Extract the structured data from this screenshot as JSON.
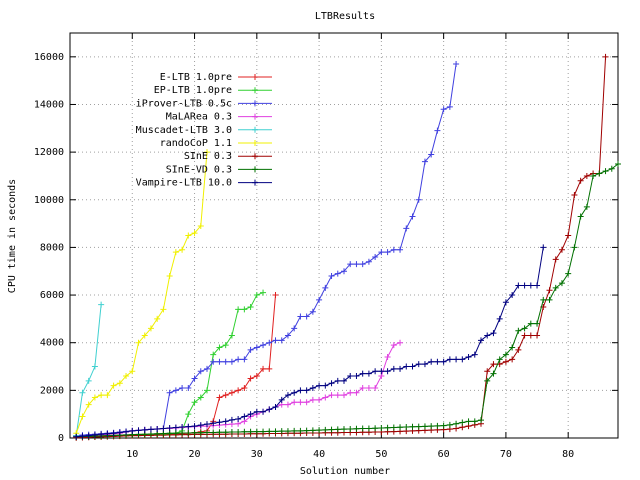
{
  "chart_data": {
    "type": "line",
    "title": "LTBResults",
    "x_label": "Solution number",
    "y_label": "CPU time in seconds",
    "xlim": [
      0,
      88
    ],
    "ylim": [
      0,
      17000
    ],
    "xticks": [
      10,
      20,
      30,
      40,
      50,
      60,
      70,
      80
    ],
    "yticks": [
      0,
      2000,
      4000,
      6000,
      8000,
      10000,
      12000,
      14000,
      16000
    ],
    "grid": true,
    "legend": "top-left",
    "x": [
      1,
      2,
      3,
      4,
      5,
      6,
      7,
      8,
      9,
      10,
      11,
      12,
      13,
      14,
      15,
      16,
      17,
      18,
      19,
      20,
      21,
      22,
      23,
      24,
      25,
      26,
      27,
      28,
      29,
      30,
      31,
      32,
      33,
      34,
      35,
      36,
      37,
      38,
      39,
      40,
      41,
      42,
      43,
      44,
      45,
      46,
      47,
      48,
      49,
      50,
      51,
      52,
      53,
      54,
      55,
      56,
      57,
      58,
      59,
      60,
      61,
      62,
      63,
      64,
      65,
      66,
      67,
      68,
      69,
      70,
      71,
      72,
      73,
      74,
      75,
      76,
      77,
      78,
      79,
      80,
      81,
      82,
      83,
      84,
      85,
      86,
      87,
      88
    ],
    "series": [
      {
        "name": "E-LTB 1.0pre",
        "color": "#e02020",
        "values": [
          20,
          30,
          40,
          50,
          60,
          70,
          80,
          90,
          100,
          110,
          120,
          130,
          140,
          150,
          160,
          170,
          180,
          190,
          200,
          220,
          260,
          300,
          700,
          1700,
          1800,
          1900,
          2000,
          2100,
          2500,
          2600,
          2900,
          2900,
          6000,
          null,
          null,
          null,
          null,
          null,
          null,
          null,
          null,
          null,
          null,
          null,
          null,
          null,
          null,
          null,
          null,
          null,
          null,
          null,
          null,
          null,
          null,
          null,
          null,
          null,
          null,
          null,
          null,
          null,
          null,
          null,
          null,
          null,
          null,
          null,
          null,
          null,
          null,
          null,
          null,
          null,
          null,
          null,
          null,
          null,
          null,
          null,
          null,
          null,
          null,
          null,
          null,
          null,
          null,
          null
        ]
      },
      {
        "name": "EP-LTB 1.0pre",
        "color": "#30d030",
        "values": [
          20,
          30,
          40,
          50,
          60,
          70,
          80,
          90,
          100,
          110,
          120,
          130,
          140,
          150,
          160,
          180,
          200,
          300,
          1000,
          1500,
          1700,
          2000,
          3500,
          3800,
          3900,
          4300,
          5400,
          5400,
          5500,
          6000,
          6100,
          null,
          null,
          null,
          null,
          null,
          null,
          null,
          null,
          null,
          null,
          null,
          null,
          null,
          null,
          null,
          null,
          null,
          null,
          null,
          null,
          null,
          null,
          null,
          null,
          null,
          null,
          null,
          null,
          null,
          null,
          null,
          null,
          null,
          null,
          null,
          null,
          null,
          null,
          null,
          null,
          null,
          null,
          null,
          null,
          null,
          null,
          null,
          null,
          null,
          null,
          null,
          null,
          null,
          null,
          null,
          null,
          null
        ]
      },
      {
        "name": "iProver-LTB 0.5c",
        "color": "#4040e0",
        "values": [
          100,
          120,
          140,
          160,
          180,
          200,
          220,
          250,
          280,
          300,
          320,
          340,
          360,
          380,
          400,
          1900,
          2000,
          2100,
          2100,
          2500,
          2800,
          2900,
          3200,
          3200,
          3200,
          3200,
          3300,
          3300,
          3700,
          3800,
          3900,
          4000,
          4100,
          4100,
          4300,
          4600,
          5100,
          5100,
          5300,
          5800,
          6300,
          6800,
          6900,
          7000,
          7300,
          7300,
          7300,
          7400,
          7600,
          7800,
          7800,
          7900,
          7900,
          8800,
          9300,
          10000,
          11600,
          11900,
          12900,
          13800,
          13900,
          15700,
          null,
          null,
          null,
          null,
          null,
          null,
          null,
          null,
          null,
          null,
          null,
          null,
          null,
          null,
          null,
          null,
          null,
          null,
          null,
          null,
          null,
          null,
          null,
          null,
          null,
          null
        ]
      },
      {
        "name": "MaLARea 0.3",
        "color": "#e040e0",
        "values": [
          50,
          60,
          80,
          100,
          120,
          150,
          180,
          200,
          250,
          300,
          320,
          340,
          360,
          380,
          400,
          400,
          420,
          440,
          460,
          480,
          500,
          500,
          520,
          540,
          560,
          580,
          600,
          700,
          900,
          1000,
          1100,
          1200,
          1300,
          1400,
          1400,
          1500,
          1500,
          1500,
          1600,
          1600,
          1700,
          1800,
          1800,
          1800,
          1900,
          1900,
          2100,
          2100,
          2100,
          2600,
          3400,
          3900,
          4000,
          null,
          null,
          null,
          null,
          null,
          null,
          null,
          null,
          null,
          null,
          null,
          null,
          null,
          null,
          null,
          null,
          null,
          null,
          null,
          null,
          null,
          null,
          null,
          null,
          null,
          null,
          null,
          null,
          null,
          null,
          null,
          null,
          null,
          null,
          null
        ]
      },
      {
        "name": "Muscadet-LTB 3.0",
        "color": "#40d0d0",
        "values": [
          100,
          1900,
          2400,
          3000,
          5600,
          null,
          null,
          null,
          null,
          null,
          null,
          null,
          null,
          null,
          null,
          null,
          null,
          null,
          null,
          null,
          null,
          null,
          null,
          null,
          null,
          null,
          null,
          null,
          null,
          null,
          null,
          null,
          null,
          null,
          null,
          null,
          null,
          null,
          null,
          null,
          null,
          null,
          null,
          null,
          null,
          null,
          null,
          null,
          null,
          null,
          null,
          null,
          null,
          null,
          null,
          null,
          null,
          null,
          null,
          null,
          null,
          null,
          null,
          null,
          null,
          null,
          null,
          null,
          null,
          null,
          null,
          null,
          null,
          null,
          null,
          null,
          null,
          null,
          null,
          null,
          null,
          null,
          null,
          null,
          null,
          null,
          null,
          null
        ]
      },
      {
        "name": "randoCoP 1.1",
        "color": "#f0f000",
        "values": [
          200,
          900,
          1400,
          1700,
          1800,
          1800,
          2200,
          2300,
          2600,
          2800,
          4000,
          4300,
          4600,
          5000,
          5400,
          6800,
          7800,
          7900,
          8500,
          8600,
          8900,
          12000,
          null,
          null,
          null,
          null,
          null,
          null,
          null,
          null,
          null,
          null,
          null,
          null,
          null,
          null,
          null,
          null,
          null,
          null,
          null,
          null,
          null,
          null,
          null,
          null,
          null,
          null,
          null,
          null,
          null,
          null,
          null,
          null,
          null,
          null,
          null,
          null,
          null,
          null,
          null,
          null,
          null,
          null,
          null,
          null,
          null,
          null,
          null,
          null,
          null,
          null,
          null,
          null,
          null,
          null,
          null,
          null,
          null,
          null,
          null,
          null,
          null,
          null,
          null,
          null,
          null,
          null
        ]
      },
      {
        "name": "SInE 0.3",
        "color": "#a00000",
        "values": [
          10,
          20,
          30,
          40,
          50,
          60,
          70,
          80,
          90,
          100,
          100,
          110,
          110,
          120,
          120,
          130,
          130,
          140,
          140,
          150,
          150,
          150,
          160,
          160,
          160,
          170,
          170,
          170,
          180,
          180,
          180,
          190,
          190,
          190,
          200,
          200,
          200,
          210,
          210,
          210,
          220,
          220,
          220,
          230,
          230,
          230,
          240,
          240,
          250,
          250,
          260,
          270,
          280,
          290,
          300,
          310,
          320,
          330,
          340,
          350,
          370,
          400,
          450,
          500,
          550,
          600,
          2800,
          3100,
          3100,
          3200,
          3300,
          3700,
          4300,
          4300,
          4300,
          5500,
          6200,
          7500,
          7900,
          8500,
          10200,
          10800,
          11000,
          11100,
          11100,
          16000,
          null,
          null
        ]
      },
      {
        "name": "SInE-VD 0.3",
        "color": "#007000",
        "values": [
          50,
          60,
          70,
          80,
          90,
          100,
          110,
          120,
          130,
          140,
          150,
          160,
          170,
          180,
          190,
          200,
          200,
          210,
          210,
          220,
          220,
          230,
          230,
          240,
          240,
          250,
          250,
          260,
          260,
          270,
          270,
          280,
          280,
          290,
          290,
          300,
          300,
          310,
          320,
          330,
          340,
          350,
          360,
          370,
          380,
          390,
          400,
          400,
          410,
          420,
          430,
          440,
          450,
          460,
          470,
          480,
          490,
          500,
          510,
          520,
          550,
          600,
          650,
          700,
          700,
          750,
          2400,
          2700,
          3300,
          3500,
          3800,
          4500,
          4600,
          4800,
          4800,
          5800,
          5800,
          6300,
          6500,
          6900,
          8000,
          9300,
          9700,
          11000,
          11100,
          11200,
          11300,
          11500
        ]
      },
      {
        "name": "Vampire-LTB 10.0",
        "color": "#000080",
        "values": [
          50,
          80,
          100,
          130,
          160,
          180,
          200,
          230,
          260,
          300,
          320,
          340,
          360,
          380,
          400,
          420,
          440,
          460,
          480,
          500,
          540,
          580,
          620,
          660,
          700,
          760,
          800,
          900,
          1000,
          1100,
          1100,
          1200,
          1300,
          1600,
          1800,
          1900,
          2000,
          2000,
          2100,
          2200,
          2200,
          2300,
          2400,
          2400,
          2600,
          2600,
          2700,
          2700,
          2800,
          2800,
          2800,
          2900,
          2900,
          3000,
          3000,
          3100,
          3100,
          3200,
          3200,
          3200,
          3300,
          3300,
          3300,
          3400,
          3500,
          4100,
          4300,
          4400,
          5000,
          5700,
          6000,
          6400,
          6400,
          6400,
          6400,
          8000,
          null,
          null,
          null,
          null,
          null,
          null,
          null,
          null,
          null,
          null,
          null,
          null
        ]
      }
    ]
  }
}
